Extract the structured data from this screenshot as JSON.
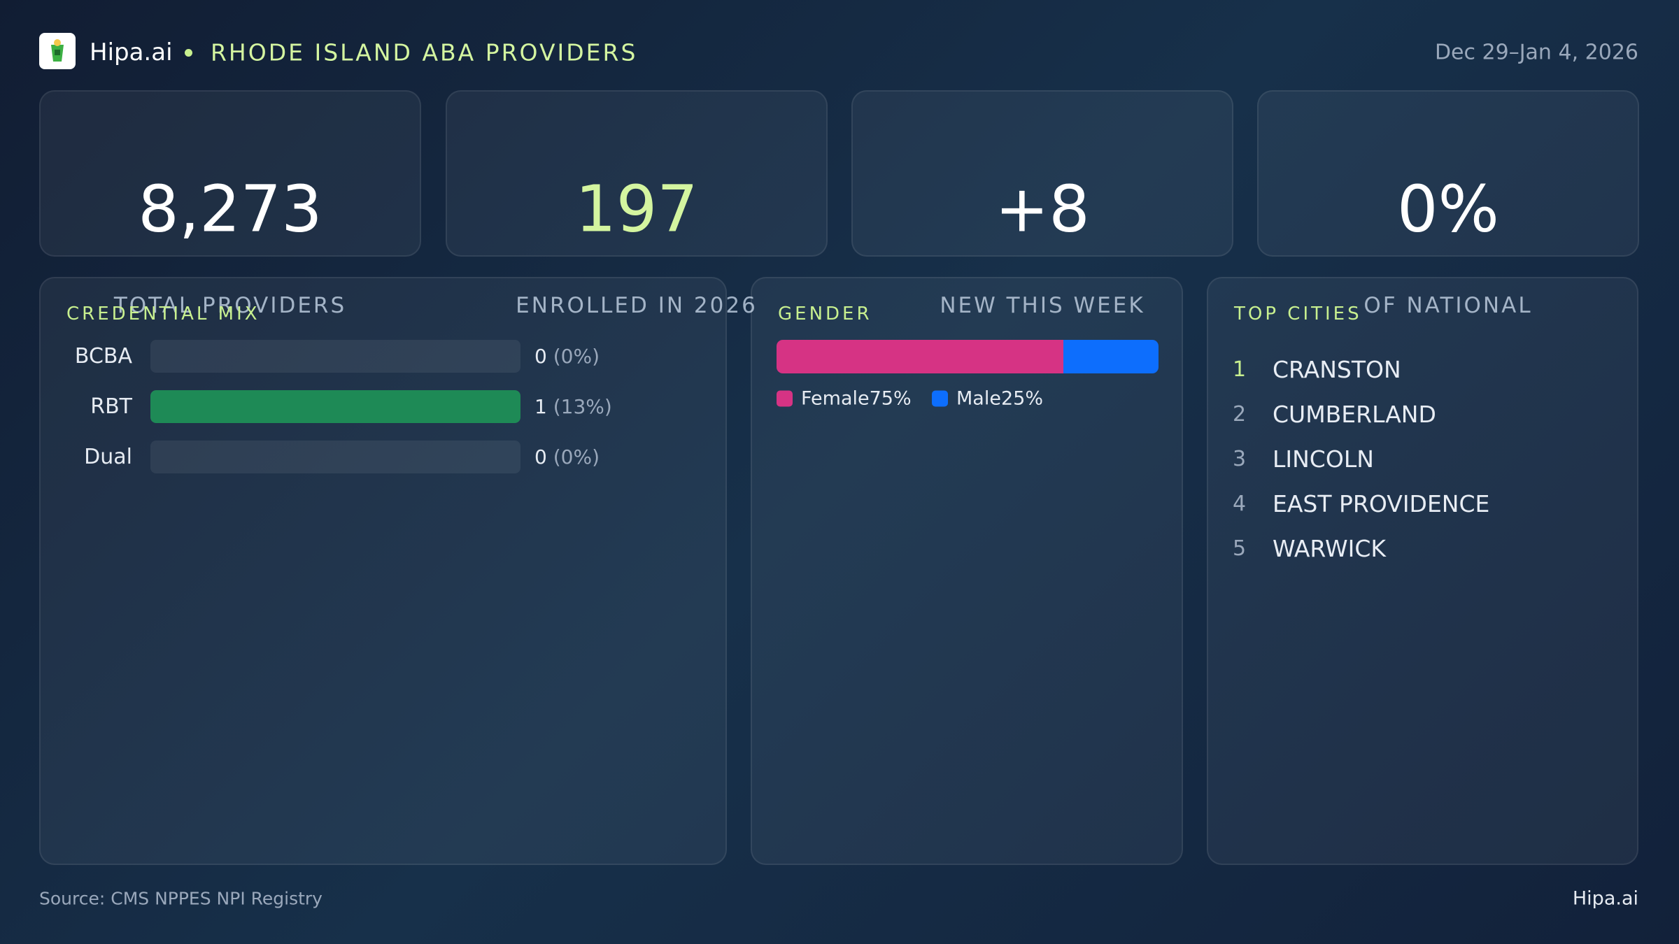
{
  "header": {
    "brand": "Hipa.ai",
    "title": "RHODE ISLAND ABA PROVIDERS",
    "date": "Dec 29–Jan 4, 2026"
  },
  "stats": [
    {
      "value": "8,273",
      "label": "TOTAL PROVIDERS"
    },
    {
      "value": "197",
      "label": "ENROLLED IN 2026"
    },
    {
      "value": "+8",
      "label": "NEW THIS WEEK"
    },
    {
      "value": "0%",
      "label": "OF NATIONAL"
    }
  ],
  "credential_mix": {
    "title": "CREDENTIAL MIX",
    "categories": [
      "BCBA",
      "RBT",
      "Dual"
    ],
    "values": [
      0,
      1,
      0
    ],
    "share_labels": [
      "(0%)",
      "(13%)",
      "(0%)"
    ],
    "color": "#1e8a56"
  },
  "gender": {
    "title": "GENDER",
    "series": [
      {
        "name": "Female",
        "value": 75,
        "label": "75%",
        "color": "#d63384"
      },
      {
        "name": "Male",
        "value": 25,
        "label": "25%",
        "color": "#0d6efd"
      }
    ]
  },
  "top_cities": {
    "title": "TOP CITIES",
    "items": [
      {
        "rank": 1,
        "name": "CRANSTON"
      },
      {
        "rank": 2,
        "name": "CUMBERLAND"
      },
      {
        "rank": 3,
        "name": "LINCOLN"
      },
      {
        "rank": 4,
        "name": "EAST PROVIDENCE"
      },
      {
        "rank": 5,
        "name": "WARWICK"
      }
    ]
  },
  "footer": {
    "source": "Source: CMS NPPES NPI Registry",
    "brand": "Hipa.ai"
  }
}
